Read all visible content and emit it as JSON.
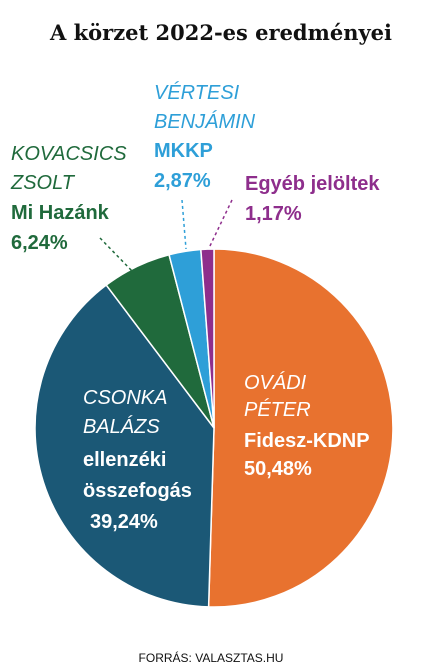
{
  "title": "A körzet 2022-es eredményei",
  "source": "FORRÁS: VALASZTAS.HU",
  "colors": {
    "fidesz": "#E8722F",
    "ellenzek": "#1B5876",
    "mihazank": "#206A3C",
    "mkkp": "#2E9FD8",
    "egyeb": "#8E2E8C",
    "white": "#FFFFFF"
  },
  "labels": {
    "fidesz": {
      "name1": "OVÁDI",
      "name2": "PÉTER",
      "party": "Fidesz-KDNP",
      "pct": "50,48%"
    },
    "ellenzek": {
      "name1": "CSONKA",
      "name2": "BALÁZS",
      "party1": "ellenzéki",
      "party2": "összefogás",
      "pct": "39,24%"
    },
    "mihazank": {
      "name1": "KOVACSICS",
      "name2": "ZSOLT",
      "party": "Mi Hazánk",
      "pct": "6,24%"
    },
    "mkkp": {
      "name1": "VÉRTESI",
      "name2": "BENJÁMIN",
      "party": "MKKP",
      "pct": "2,87%"
    },
    "egyeb": {
      "party": "Egyéb jelöltek",
      "pct": "1,17%"
    }
  },
  "chart_data": {
    "type": "pie",
    "title": "A körzet 2022-es eredményei",
    "start": "12 o'clock, clockwise",
    "slices": [
      {
        "label": "OVÁDI PÉTER – Fidesz-KDNP",
        "value": 50.48,
        "color": "#E8722F"
      },
      {
        "label": "CSONKA BALÁZS – ellenzéki összefogás",
        "value": 39.24,
        "color": "#1B5876"
      },
      {
        "label": "KOVACSICS ZSOLT – Mi Hazánk",
        "value": 6.24,
        "color": "#206A3C"
      },
      {
        "label": "VÉRTESI BENJÁMIN – MKKP",
        "value": 2.87,
        "color": "#2E9FD8"
      },
      {
        "label": "Egyéb jelöltek",
        "value": 1.17,
        "color": "#8E2E8C"
      }
    ]
  }
}
